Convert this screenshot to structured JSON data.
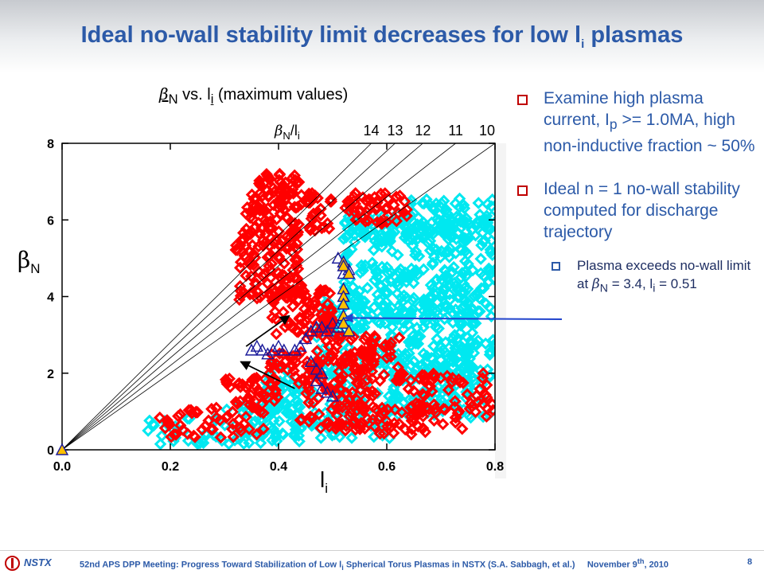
{
  "slide": {
    "title_main": "Ideal no-wall stability limit decreases for low l",
    "title_sub": "i",
    "title_end": " plasmas"
  },
  "chart_data": {
    "type": "scatter",
    "plot_title_beta": "β",
    "plot_title_beta_sub": "N",
    "plot_title_mid": " vs. l",
    "plot_title_li_sub": "i",
    "plot_title_end": " (maximum values)",
    "ylabel": "βN",
    "xlabel": "li",
    "xlim": [
      0.0,
      0.8
    ],
    "ylim": [
      0,
      8
    ],
    "x_ticks": [
      "0.0",
      "0.2",
      "0.4",
      "0.6",
      "0.8"
    ],
    "y_ticks": [
      "0",
      "2",
      "4",
      "6",
      "8"
    ],
    "ratio_header": "βN/li",
    "ratio_lines": [
      14,
      13,
      12,
      11,
      10
    ],
    "ratio_labels": [
      "14",
      "13",
      "12",
      "11",
      "10"
    ],
    "trajectory_triangles_open": [
      {
        "x": 0.35,
        "y": 2.6
      },
      {
        "x": 0.36,
        "y": 2.7
      },
      {
        "x": 0.37,
        "y": 2.6
      },
      {
        "x": 0.38,
        "y": 2.5
      },
      {
        "x": 0.39,
        "y": 2.6
      },
      {
        "x": 0.4,
        "y": 2.7
      },
      {
        "x": 0.41,
        "y": 2.6
      },
      {
        "x": 0.43,
        "y": 2.6
      },
      {
        "x": 0.44,
        "y": 2.7
      },
      {
        "x": 0.45,
        "y": 2.9
      },
      {
        "x": 0.46,
        "y": 3.1
      },
      {
        "x": 0.47,
        "y": 3.2
      },
      {
        "x": 0.48,
        "y": 3.2
      },
      {
        "x": 0.49,
        "y": 3.1
      },
      {
        "x": 0.5,
        "y": 3.3
      },
      {
        "x": 0.51,
        "y": 3.2
      },
      {
        "x": 0.46,
        "y": 2.3
      },
      {
        "x": 0.47,
        "y": 2.1
      },
      {
        "x": 0.47,
        "y": 1.8
      },
      {
        "x": 0.48,
        "y": 1.6
      },
      {
        "x": 0.49,
        "y": 1.5
      },
      {
        "x": 0.5,
        "y": 1.4
      },
      {
        "x": 0.48,
        "y": 2.0
      },
      {
        "x": 0.51,
        "y": 5.0
      },
      {
        "x": 0.52,
        "y": 4.9
      },
      {
        "x": 0.53,
        "y": 4.7
      },
      {
        "x": 0.52,
        "y": 4.6
      }
    ],
    "trajectory_triangles_filled": [
      {
        "x": 0.0,
        "y": 0.0
      },
      {
        "x": 0.52,
        "y": 4.9
      },
      {
        "x": 0.52,
        "y": 4.8
      },
      {
        "x": 0.53,
        "y": 4.6
      },
      {
        "x": 0.52,
        "y": 4.2
      },
      {
        "x": 0.52,
        "y": 4.0
      },
      {
        "x": 0.52,
        "y": 3.8
      },
      {
        "x": 0.52,
        "y": 3.5
      },
      {
        "x": 0.52,
        "y": 3.3
      },
      {
        "x": 0.53,
        "y": 3.1
      }
    ],
    "annotation_point": {
      "x": 0.51,
      "y": 3.4
    },
    "arrows": [
      {
        "from": {
          "x": 0.34,
          "y": 2.7
        },
        "to": {
          "x": 0.42,
          "y": 3.5
        }
      },
      {
        "from": {
          "x": 0.43,
          "y": 1.6
        },
        "to": {
          "x": 0.33,
          "y": 2.3
        }
      }
    ],
    "colors": {
      "red_series": "#ff0000",
      "cyan_series": "#00e8f0",
      "triangle_outline": "#1a1a9a",
      "triangle_fill": "#ffc000",
      "annotation_arrow": "#2244cc"
    }
  },
  "bullets": [
    {
      "text_a": "Examine high plasma current, I",
      "sub": "p",
      "text_b": " >= 1.0MA, high non-inductive fraction ~ 50%"
    },
    {
      "text_a": "Ideal n = 1 no-wall stability computed for discharge trajectory",
      "sub": "",
      "text_b": ""
    }
  ],
  "sub_bullet": {
    "text_a": "Plasma exceeds no-wall limit at ",
    "beta": "β",
    "beta_sub": "N",
    "text_b": " = 3.4, l",
    "li_sub": "i",
    "text_c": " = 0.51"
  },
  "footer": {
    "brand": "NSTX",
    "text_a": "52nd APS DPP Meeting: Progress Toward Stabilization of Low l",
    "text_sub": "i",
    "text_b": " Spherical Torus Plasmas in NSTX (S.A. Sabbagh, et al.)     November 9",
    "text_sup": "th",
    "text_c": ", 2010",
    "page": "8"
  }
}
